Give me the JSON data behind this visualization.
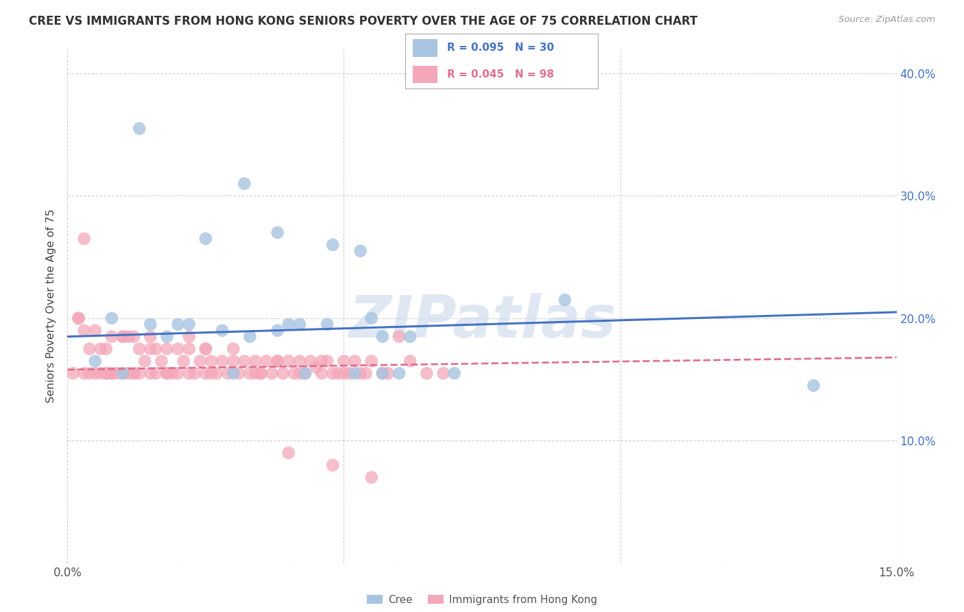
{
  "title": "CREE VS IMMIGRANTS FROM HONG KONG SENIORS POVERTY OVER THE AGE OF 75 CORRELATION CHART",
  "source": "Source: ZipAtlas.com",
  "ylabel": "Seniors Poverty Over the Age of 75",
  "xlim": [
    0.0,
    0.15
  ],
  "ylim": [
    0.0,
    0.42
  ],
  "background_color": "#ffffff",
  "cree_color": "#a8c4e0",
  "hk_color": "#f4a7b9",
  "cree_line_color": "#4472c4",
  "hk_line_color": "#e07090",
  "watermark": "ZIPatlas",
  "watermark_color": "#c8d8ea",
  "cree_scatter_x": [
    0.013,
    0.025,
    0.032,
    0.038,
    0.042,
    0.048,
    0.053,
    0.055,
    0.057,
    0.062,
    0.008,
    0.015,
    0.018,
    0.022,
    0.028,
    0.033,
    0.038,
    0.043,
    0.047,
    0.052,
    0.057,
    0.005,
    0.01,
    0.02,
    0.03,
    0.04,
    0.06,
    0.07,
    0.09,
    0.135
  ],
  "cree_scatter_y": [
    0.355,
    0.265,
    0.31,
    0.27,
    0.195,
    0.26,
    0.255,
    0.2,
    0.185,
    0.185,
    0.2,
    0.195,
    0.185,
    0.195,
    0.19,
    0.185,
    0.19,
    0.155,
    0.195,
    0.155,
    0.155,
    0.165,
    0.155,
    0.195,
    0.155,
    0.195,
    0.155,
    0.155,
    0.215,
    0.145
  ],
  "hk_scatter_x": [
    0.001,
    0.002,
    0.003,
    0.003,
    0.004,
    0.005,
    0.005,
    0.006,
    0.007,
    0.007,
    0.008,
    0.008,
    0.009,
    0.01,
    0.01,
    0.011,
    0.012,
    0.012,
    0.013,
    0.013,
    0.014,
    0.015,
    0.015,
    0.016,
    0.016,
    0.017,
    0.018,
    0.019,
    0.02,
    0.02,
    0.021,
    0.022,
    0.022,
    0.023,
    0.024,
    0.025,
    0.025,
    0.026,
    0.027,
    0.028,
    0.029,
    0.03,
    0.031,
    0.032,
    0.033,
    0.034,
    0.035,
    0.036,
    0.037,
    0.038,
    0.039,
    0.04,
    0.041,
    0.042,
    0.043,
    0.044,
    0.045,
    0.046,
    0.047,
    0.048,
    0.049,
    0.05,
    0.051,
    0.052,
    0.053,
    0.055,
    0.057,
    0.06,
    0.062,
    0.065,
    0.002,
    0.004,
    0.006,
    0.008,
    0.01,
    0.012,
    0.015,
    0.018,
    0.022,
    0.026,
    0.03,
    0.034,
    0.038,
    0.042,
    0.046,
    0.05,
    0.054,
    0.058,
    0.003,
    0.007,
    0.011,
    0.018,
    0.025,
    0.035,
    0.04,
    0.048,
    0.055,
    0.068
  ],
  "hk_scatter_y": [
    0.155,
    0.2,
    0.19,
    0.155,
    0.175,
    0.155,
    0.19,
    0.155,
    0.175,
    0.155,
    0.185,
    0.155,
    0.155,
    0.185,
    0.155,
    0.155,
    0.185,
    0.155,
    0.175,
    0.155,
    0.165,
    0.185,
    0.155,
    0.175,
    0.155,
    0.165,
    0.175,
    0.155,
    0.175,
    0.155,
    0.165,
    0.155,
    0.175,
    0.155,
    0.165,
    0.175,
    0.155,
    0.165,
    0.155,
    0.165,
    0.155,
    0.165,
    0.155,
    0.165,
    0.155,
    0.165,
    0.155,
    0.165,
    0.155,
    0.165,
    0.155,
    0.165,
    0.155,
    0.165,
    0.155,
    0.165,
    0.16,
    0.155,
    0.165,
    0.155,
    0.155,
    0.165,
    0.155,
    0.165,
    0.155,
    0.165,
    0.155,
    0.185,
    0.165,
    0.155,
    0.2,
    0.155,
    0.175,
    0.155,
    0.185,
    0.155,
    0.175,
    0.155,
    0.185,
    0.155,
    0.175,
    0.155,
    0.165,
    0.155,
    0.165,
    0.155,
    0.155,
    0.155,
    0.265,
    0.155,
    0.185,
    0.155,
    0.175,
    0.155,
    0.09,
    0.08,
    0.07,
    0.155
  ],
  "cree_line_x": [
    0.0,
    0.15
  ],
  "cree_line_y": [
    0.185,
    0.205
  ],
  "hk_line_x": [
    0.0,
    0.15
  ],
  "hk_line_y": [
    0.158,
    0.168
  ]
}
